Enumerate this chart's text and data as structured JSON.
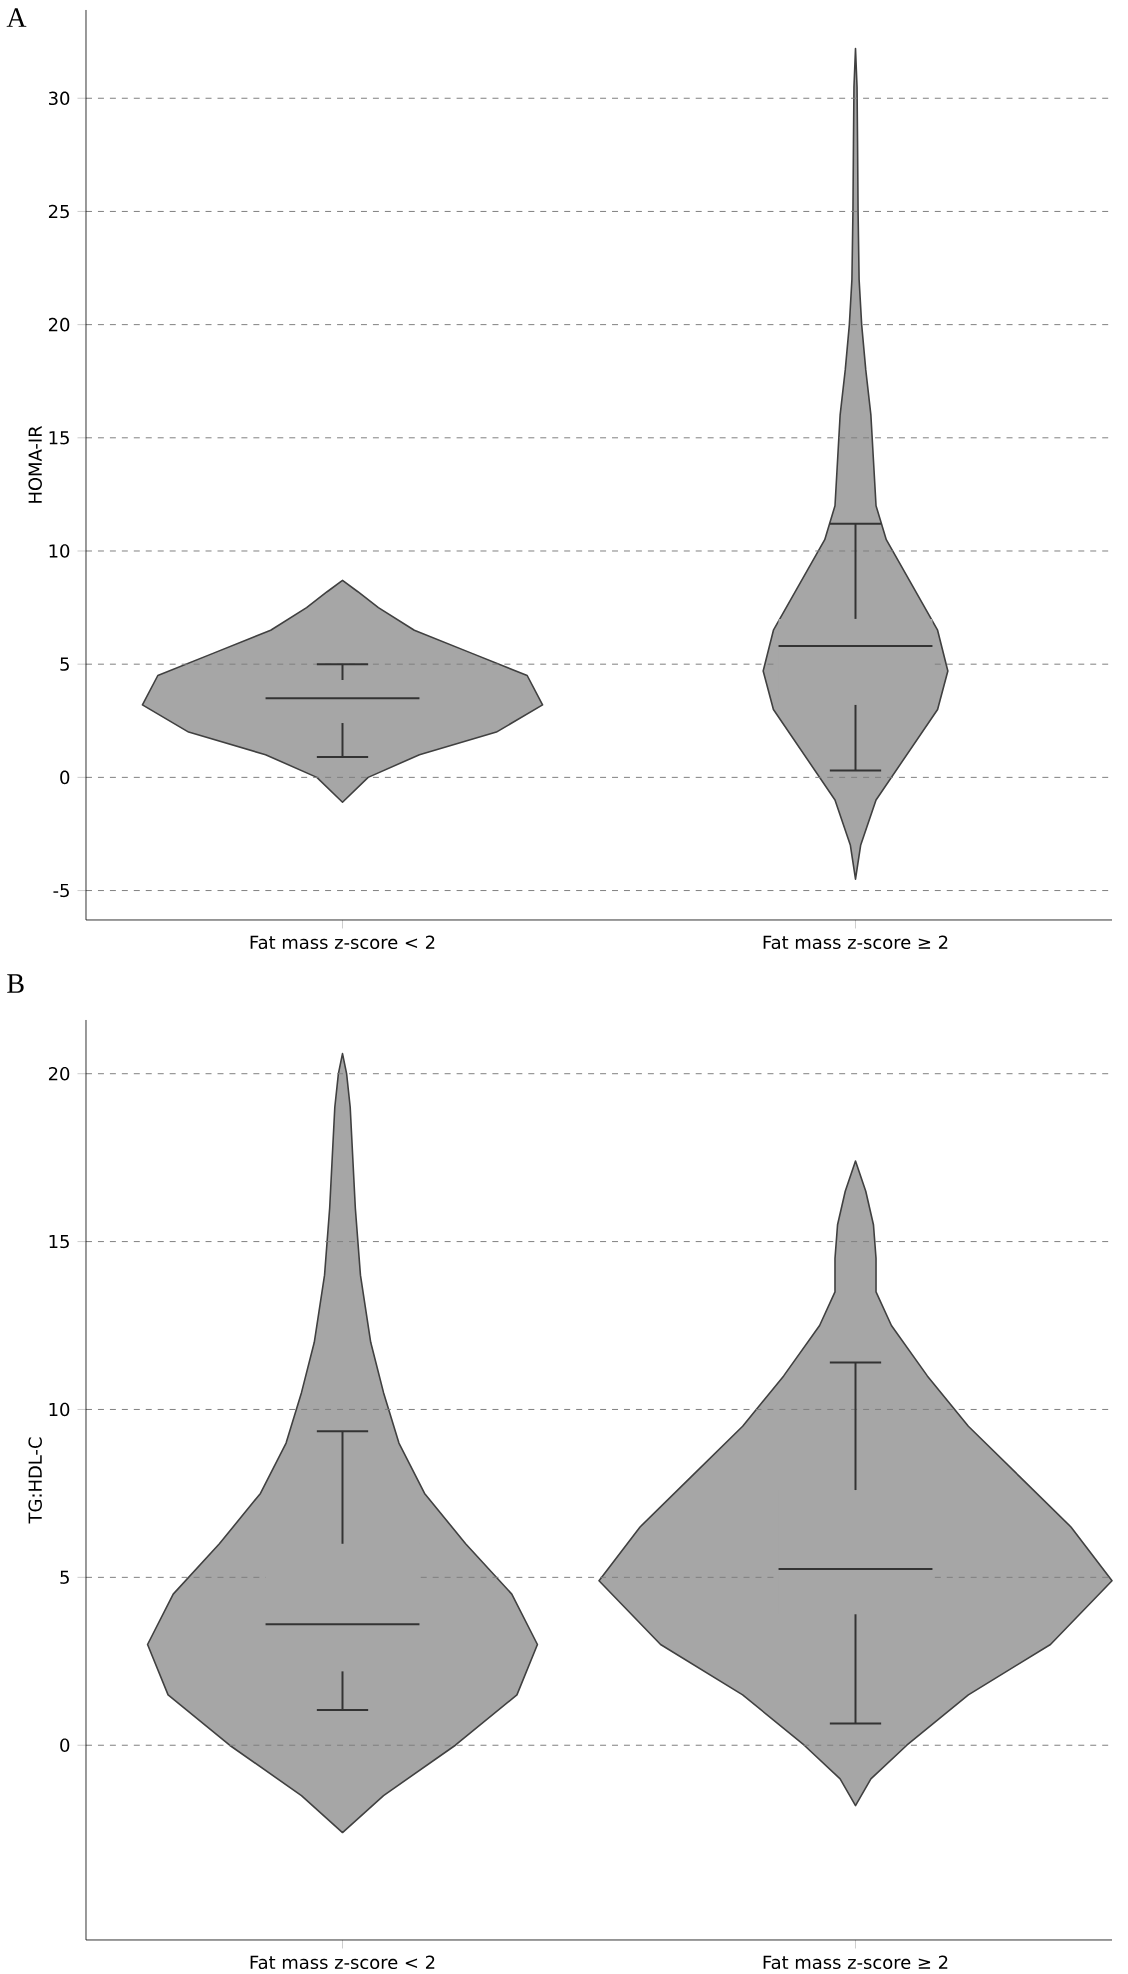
{
  "chart_data": [
    {
      "type": "box",
      "title": "A",
      "ylabel": "HOMA-IR",
      "categories": [
        "Fat mass z-score < 2",
        "Fat mass z-score ≥ 2"
      ],
      "series": [
        {
          "color": "#a6a6a6",
          "boxes": [
            {
              "low": 0.9,
              "q1": 2.4,
              "median": 3.5,
              "q3": 4.3,
              "high": 5.0
            },
            {
              "low": 0.3,
              "q1": 3.2,
              "median": 5.8,
              "q3": 7.0,
              "high": 11.2
            }
          ]
        }
      ],
      "ylim": [
        -6.3,
        33.9
      ],
      "yticks": [
        -5,
        0,
        5,
        10,
        15,
        20,
        25,
        30
      ],
      "grid": "y"
    },
    {
      "type": "box",
      "title": "B",
      "ylabel": "TG:HDL-C",
      "categories": [
        "Fat mass z-score < 2",
        "Fat mass z-score ≥ 2"
      ],
      "series": [
        {
          "color": "#a6a6a6",
          "boxes": [
            {
              "low": 1.05,
              "q1": 2.2,
              "median": 3.6,
              "q3": 6.0,
              "high": 9.35
            },
            {
              "low": 0.65,
              "q1": 3.9,
              "median": 5.25,
              "q3": 7.6,
              "high": 11.4
            }
          ]
        }
      ],
      "ylim": [
        -5.8,
        21.6
      ],
      "yticks": [
        0,
        5,
        10,
        15,
        20
      ],
      "grid": "y"
    }
  ]
}
